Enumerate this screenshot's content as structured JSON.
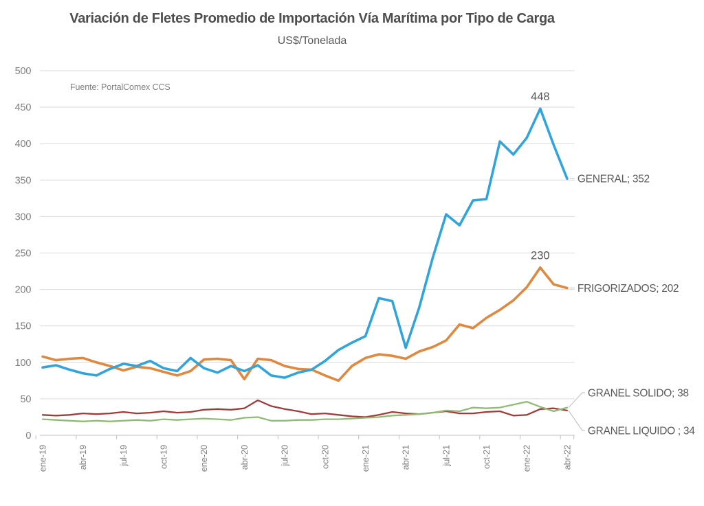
{
  "chart": {
    "title": "Variación de Fletes Promedio de Importación Vía Marítima por Tipo de Carga",
    "subtitle": "US$/Tonelada",
    "source": "Fuente: PortalComex CCS"
  },
  "chart_data": {
    "type": "line",
    "title": "Variación de Fletes Promedio de Importación Vía Marítima por Tipo de Carga",
    "subtitle_units": "US$/Tonelada",
    "x_tick_labels": [
      "ene-19",
      "abr-19",
      "jul-19",
      "oct-19",
      "ene-20",
      "abr-20",
      "jul-20",
      "oct-20",
      "ene-21",
      "abr-21",
      "jul-21",
      "oct-21",
      "ene-22",
      "abr-22"
    ],
    "x_tick_every": 3,
    "n_points": 40,
    "ylim": [
      0,
      500
    ],
    "ytick_step": 50,
    "grid": true,
    "legend_position": "right-end-labels",
    "axis_color": "#bfbfbf",
    "grid_color": "#d9d9d9",
    "label_color": "#7f7f7f",
    "series": [
      {
        "name": "GENERAL",
        "color": "#31a5db",
        "end_label": "GENERAL; 352",
        "end_value": 352,
        "values": [
          93,
          96,
          90,
          85,
          82,
          91,
          98,
          95,
          102,
          92,
          88,
          106,
          92,
          86,
          95,
          88,
          96,
          82,
          79,
          86,
          90,
          102,
          117,
          127,
          136,
          188,
          184,
          120,
          175,
          243,
          303,
          288,
          322,
          324,
          403,
          385,
          408,
          448,
          398,
          352
        ]
      },
      {
        "name": "FRIGORIZADOS",
        "color": "#e0883e",
        "end_label": "FRIGORIZADOS; 202",
        "end_value": 202,
        "values": [
          108,
          103,
          105,
          106,
          100,
          95,
          89,
          94,
          92,
          87,
          82,
          88,
          104,
          105,
          103,
          77,
          105,
          103,
          95,
          91,
          90,
          82,
          75,
          95,
          106,
          111,
          109,
          105,
          115,
          121,
          130,
          152,
          147,
          161,
          172,
          185,
          203,
          230,
          207,
          202
        ]
      },
      {
        "name": "GRANEL SOLIDO",
        "color": "#8fbc74",
        "end_label": "GRANEL SOLIDO; 38",
        "end_value": 38,
        "values": [
          22,
          21,
          20,
          19,
          20,
          19,
          20,
          21,
          20,
          22,
          21,
          22,
          23,
          22,
          21,
          24,
          25,
          20,
          20,
          21,
          21,
          22,
          22,
          23,
          24,
          25,
          27,
          28,
          29,
          31,
          34,
          33,
          38,
          37,
          38,
          42,
          46,
          39,
          33,
          38
        ]
      },
      {
        "name": "GRANEL LIQUIDO",
        "color": "#a23b38",
        "end_label": "GRANEL LIQUIDO ; 34",
        "end_value": 34,
        "values": [
          28,
          27,
          28,
          30,
          29,
          30,
          32,
          30,
          31,
          33,
          31,
          32,
          35,
          36,
          35,
          37,
          48,
          40,
          36,
          33,
          29,
          30,
          28,
          26,
          25,
          28,
          32,
          30,
          29,
          31,
          33,
          30,
          30,
          32,
          33,
          27,
          28,
          36,
          37,
          34
        ]
      }
    ],
    "annotations": [
      {
        "label": "448",
        "series": "GENERAL",
        "index": 37
      },
      {
        "label": "230",
        "series": "FRIGORIZADOS",
        "index": 37
      }
    ]
  }
}
